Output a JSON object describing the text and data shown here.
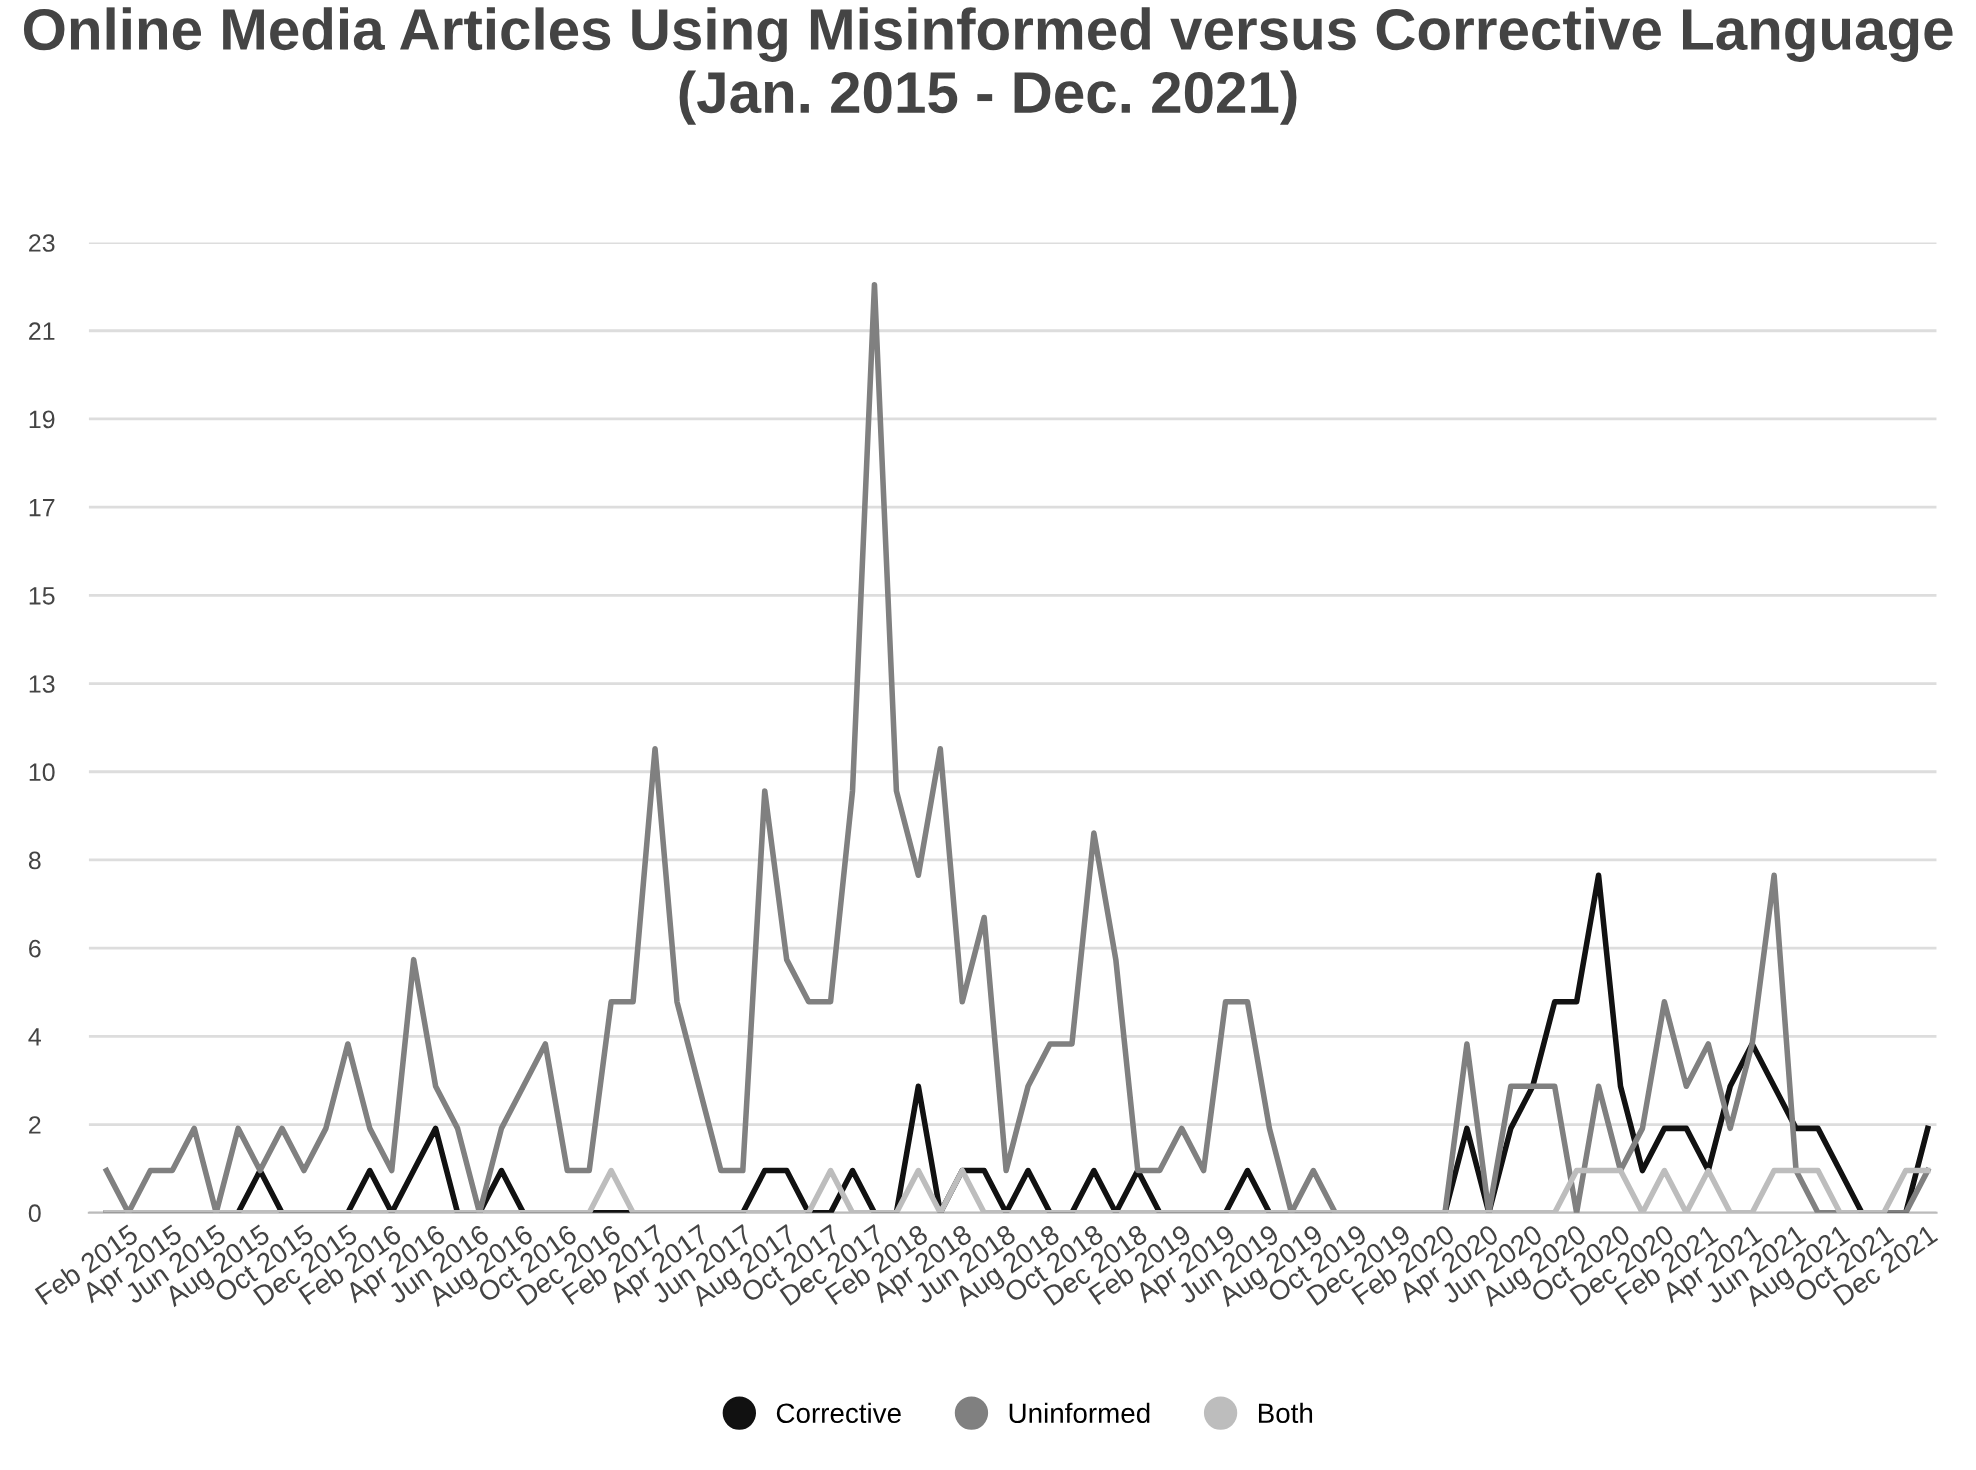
{
  "chart_data": {
    "type": "line",
    "title": "Online Media Articles Using Misinformed versus Corrective Language (Jan. 2015 - Dec. 2021)",
    "categories": [
      null,
      "Feb 2015",
      null,
      "Apr 2015",
      null,
      "Jun 2015",
      null,
      "Aug 2015",
      null,
      "Oct 2015",
      null,
      "Dec 2015",
      null,
      "Feb 2016",
      null,
      "Apr 2016",
      null,
      "Jun 2016",
      null,
      "Aug 2016",
      null,
      "Oct 2016",
      null,
      "Dec 2016",
      null,
      "Feb 2017",
      null,
      "Apr 2017",
      null,
      "Jun 2017",
      null,
      "Aug 2017",
      null,
      "Oct 2017",
      null,
      "Dec 2017",
      null,
      "Feb 2018",
      null,
      "Apr 2018",
      null,
      "Jun 2018",
      null,
      "Aug 2018",
      null,
      "Oct 2018",
      null,
      "Dec 2018",
      null,
      "Feb 2019",
      null,
      "Apr 2019",
      null,
      "Jun 2019",
      null,
      "Aug 2019",
      null,
      "Oct 2019",
      null,
      "Dec 2019",
      null,
      "Feb 2020",
      null,
      "Apr 2020",
      null,
      "Jun 2020",
      null,
      "Aug 2020",
      null,
      "Oct 2020",
      null,
      "Dec 2020",
      null,
      "Feb 2021",
      null,
      "Apr 2021",
      null,
      "Jun 2021",
      null,
      "Aug 2021",
      null,
      "Oct 2021",
      null,
      "Dec 2021"
    ],
    "series": [
      {
        "name": "Corrective",
        "color": "#111111",
        "values": [
          0,
          0,
          0,
          0,
          0,
          0,
          0,
          1,
          0,
          0,
          0,
          0,
          1,
          0,
          1,
          2,
          0,
          0,
          1,
          0,
          0,
          0,
          0,
          0,
          0,
          0,
          0,
          0,
          0,
          0,
          1,
          1,
          0,
          0,
          1,
          0,
          0,
          3,
          0,
          1,
          1,
          0,
          1,
          0,
          0,
          1,
          0,
          1,
          0,
          0,
          0,
          0,
          1,
          0,
          0,
          0,
          0,
          0,
          0,
          0,
          0,
          0,
          2,
          0,
          2,
          3,
          5,
          5,
          8,
          3,
          1,
          2,
          2,
          1,
          3,
          4,
          3,
          2,
          2,
          1,
          0,
          0,
          0,
          2
        ]
      },
      {
        "name": "Uninformed",
        "color": "#808080",
        "values": [
          1,
          0,
          1,
          1,
          2,
          0,
          2,
          1,
          2,
          1,
          2,
          4,
          2,
          1,
          6,
          3,
          2,
          0,
          2,
          3,
          4,
          1,
          1,
          5,
          5,
          11,
          5,
          3,
          1,
          1,
          10,
          6,
          5,
          5,
          10,
          22,
          10,
          8,
          11,
          5,
          7,
          1,
          3,
          4,
          4,
          9,
          6,
          1,
          1,
          2,
          1,
          5,
          5,
          2,
          0,
          1,
          0,
          0,
          0,
          0,
          0,
          0,
          4,
          0,
          3,
          3,
          3,
          0,
          3,
          1,
          2,
          5,
          3,
          4,
          2,
          4,
          8,
          1,
          0,
          0,
          0,
          0,
          0,
          1
        ]
      },
      {
        "name": "Both",
        "color": "#bdbdbd",
        "values": [
          0,
          0,
          0,
          0,
          0,
          0,
          0,
          0,
          0,
          0,
          0,
          0,
          0,
          0,
          0,
          0,
          0,
          0,
          0,
          0,
          0,
          0,
          0,
          1,
          0,
          0,
          0,
          0,
          0,
          0,
          0,
          0,
          0,
          1,
          0,
          0,
          0,
          1,
          0,
          1,
          0,
          0,
          0,
          0,
          0,
          0,
          0,
          0,
          0,
          0,
          0,
          0,
          0,
          0,
          0,
          0,
          0,
          0,
          0,
          0,
          0,
          0,
          0,
          0,
          0,
          0,
          0,
          1,
          1,
          1,
          0,
          1,
          0,
          1,
          0,
          0,
          1,
          1,
          1,
          0,
          0,
          0,
          1,
          1
        ]
      }
    ],
    "ylim": [
      0,
      23
    ],
    "yticks": [
      0,
      {
        "value": 2.0909,
        "label": "2"
      },
      {
        "value": 4.1818,
        "label": "4"
      },
      {
        "value": 6.2727,
        "label": "6"
      },
      {
        "value": 8.3636,
        "label": "8"
      },
      {
        "value": 10.4545,
        "label": "10"
      },
      {
        "value": 12.5455,
        "label": "13"
      },
      {
        "value": 14.6364,
        "label": "15"
      },
      {
        "value": 16.7273,
        "label": "17"
      },
      {
        "value": 18.8182,
        "label": "19"
      },
      {
        "value": 20.9091,
        "label": "21"
      },
      23
    ],
    "grid": "y",
    "legend": "bottom"
  }
}
